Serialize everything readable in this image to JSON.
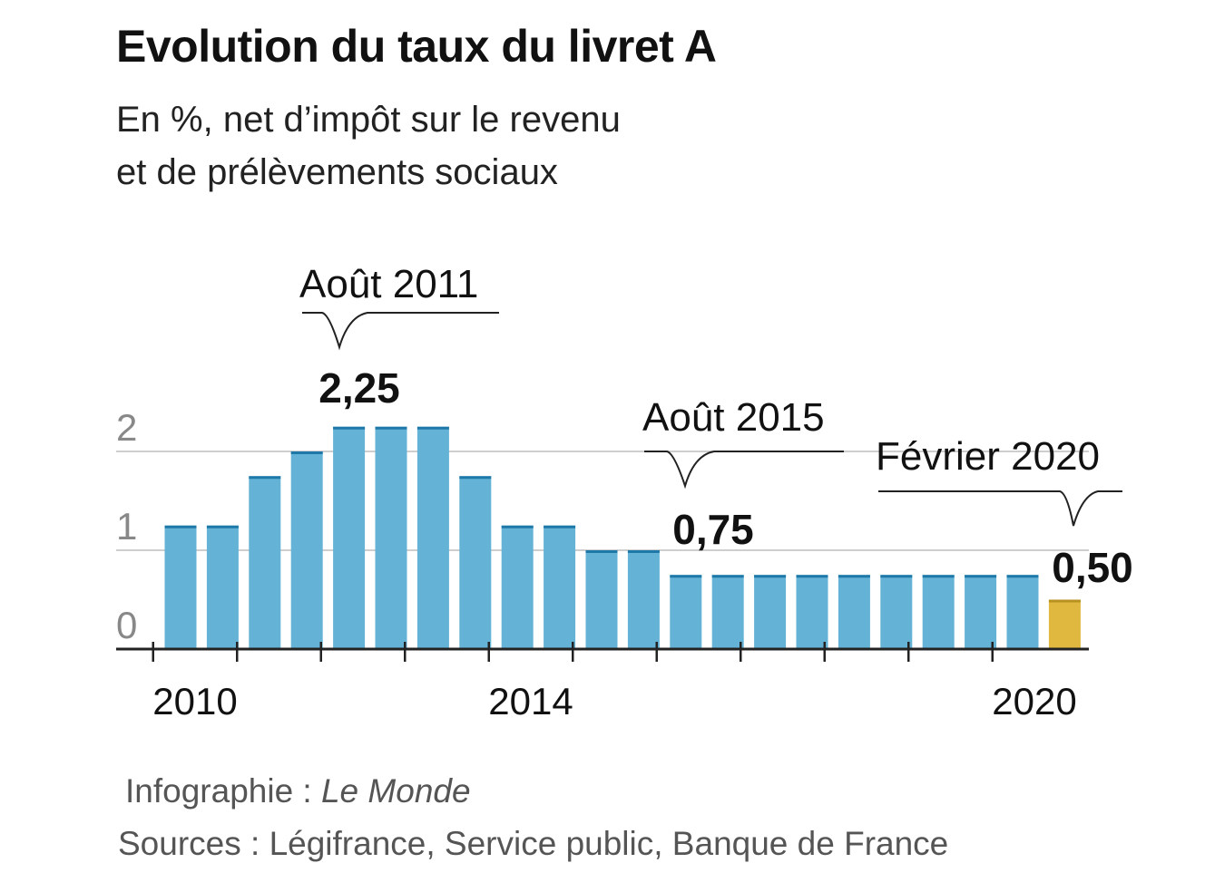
{
  "chart_data": {
    "type": "bar",
    "title": "Evolution du taux du livret A",
    "subtitle_lines": [
      "En %, net d’impôt sur le revenu",
      "et de prélèvements sociaux"
    ],
    "xlabel": "",
    "ylabel": "",
    "ylim": [
      0,
      2.5
    ],
    "yticks": [
      {
        "value": 0,
        "label": "0"
      },
      {
        "value": 1,
        "label": "1"
      },
      {
        "value": 2,
        "label": "2"
      }
    ],
    "values": [
      1.25,
      1.25,
      1.75,
      2.0,
      2.25,
      2.25,
      2.25,
      1.75,
      1.25,
      1.25,
      1.0,
      1.0,
      0.75,
      0.75,
      0.75,
      0.75,
      0.75,
      0.75,
      0.75,
      0.75,
      0.75,
      0.5
    ],
    "highlight_index": 21,
    "colors": {
      "bar": "#64b3d6",
      "bar_top": "#1f79a8",
      "highlight": "#e0b840",
      "highlight_top": "#b8921f",
      "grid": "#bdbdbd",
      "axis": "#222222",
      "tick_label": "#888888"
    },
    "year_ticks": [
      2009.5,
      2010.5,
      2011.5,
      2012.5,
      2013.5,
      2014.5,
      2015.5,
      2016.5,
      2017.5,
      2018.5,
      2019.5
    ],
    "year_labels": [
      {
        "year": 2010,
        "label": "2010"
      },
      {
        "year": 2014,
        "label": "2014"
      },
      {
        "year": 2020,
        "label": "2020"
      }
    ],
    "annotations": [
      {
        "label": "Août 2011",
        "value_label": "2,25",
        "bar_index": 4
      },
      {
        "label": "Août 2015",
        "value_label": "0,75",
        "bar_index": 12
      },
      {
        "label": "Février 2020",
        "value_label": "0,50",
        "bar_index": 21
      }
    ]
  },
  "footer": {
    "credit_prefix": "Infographie : ",
    "credit_org": "Le Monde",
    "sources": "Sources : Légifrance, Service public, Banque de France"
  }
}
